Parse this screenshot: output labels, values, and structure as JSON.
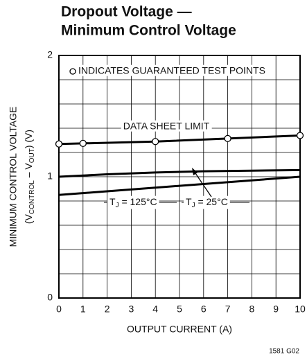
{
  "chart_data": {
    "type": "line",
    "title_lines": [
      "Dropout Voltage —",
      "Minimum Control Voltage"
    ],
    "xlabel": "OUTPUT CURRENT (A)",
    "ylabel_line1": "MINIMUM CONTROL VOLTAGE",
    "ylabel_line2": [
      "(V",
      "CONTROL",
      " – V",
      "OUT",
      ") (V)"
    ],
    "xlim": [
      0,
      10
    ],
    "xticks": [
      0,
      1,
      2,
      3,
      4,
      5,
      6,
      7,
      8,
      9,
      10
    ],
    "ylim": [
      0,
      2
    ],
    "yticks": [
      0,
      1,
      2
    ],
    "y_minor_ticks": [
      0.2,
      0.4,
      0.6,
      0.8,
      1.2,
      1.4,
      1.6,
      1.8
    ],
    "grid": true,
    "color": "#000000",
    "series": [
      {
        "label": "DATA SHEET LIMIT",
        "x": [
          0,
          1,
          4,
          7,
          10
        ],
        "values": [
          1.27,
          1.275,
          1.29,
          1.315,
          1.34
        ],
        "markers": true
      },
      {
        "label_parts": [
          "T",
          "J",
          " = 25°C"
        ],
        "x": [
          0,
          2,
          4,
          6,
          8,
          10
        ],
        "values": [
          1.0,
          1.02,
          1.035,
          1.045,
          1.05,
          1.055
        ],
        "markers": false
      },
      {
        "label_parts": [
          "T",
          "J",
          " = 125°C"
        ],
        "x": [
          0,
          2,
          4,
          6,
          8,
          10
        ],
        "values": [
          0.85,
          0.88,
          0.91,
          0.94,
          0.97,
          1.0
        ],
        "markers": false
      }
    ],
    "annotation": "INDICATES GUARANTEED TEST POINTS",
    "footnote": "1581 G02"
  }
}
